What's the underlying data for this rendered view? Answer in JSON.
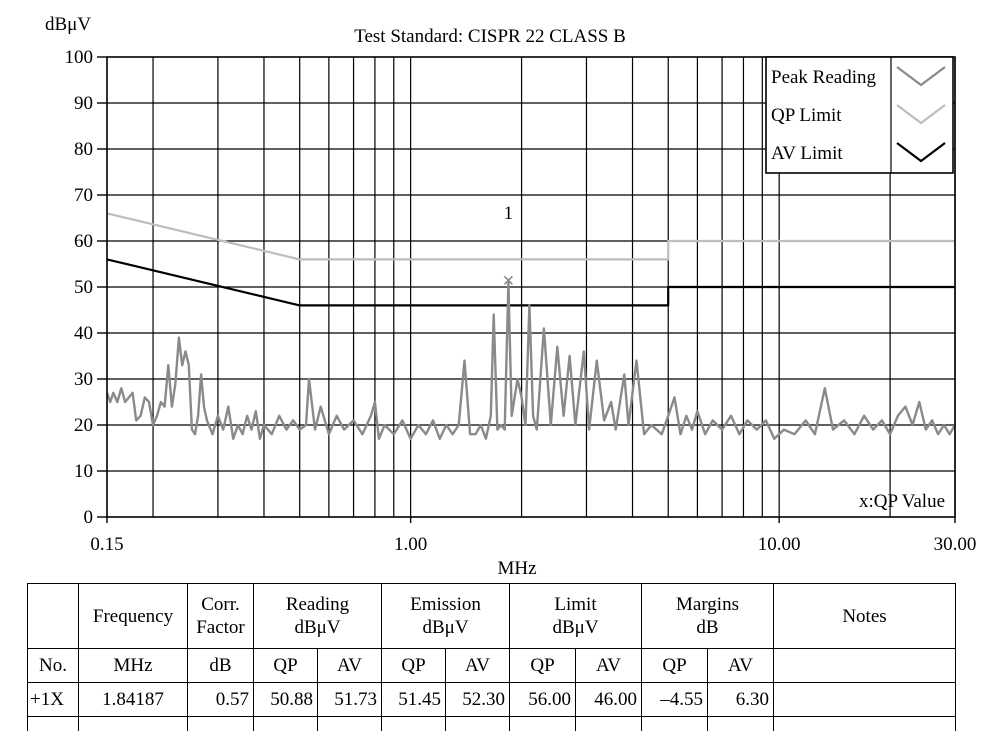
{
  "chart_data": {
    "type": "line",
    "title": "Test Standard: CISPR 22 CLASS B",
    "xlabel": "MHz",
    "ylabel": "dBμV",
    "x_scale": "log",
    "xlim": [
      0.15,
      30
    ],
    "ylim": [
      0,
      100
    ],
    "y_ticks": [
      0,
      10,
      20,
      30,
      40,
      50,
      60,
      70,
      80,
      90,
      100
    ],
    "x_tick_labels": [
      {
        "value": 0.15,
        "label": "0.15"
      },
      {
        "value": 1,
        "label": "1.00"
      },
      {
        "value": 10,
        "label": "10.00"
      },
      {
        "value": 30,
        "label": "30.00"
      }
    ],
    "grid": true,
    "legend_position": "top-right",
    "legend": [
      {
        "name": "Peak Reading",
        "color": "#8a8a8a"
      },
      {
        "name": "QP Limit",
        "color": "#bdbdbd"
      },
      {
        "name": "AV Limit",
        "color": "#000000"
      }
    ],
    "series": [
      {
        "name": "QP Limit",
        "color": "#bdbdbd",
        "points": [
          [
            0.15,
            66
          ],
          [
            0.5,
            56
          ],
          [
            5,
            56
          ],
          [
            5,
            60
          ],
          [
            30,
            60
          ]
        ]
      },
      {
        "name": "AV Limit",
        "color": "#000000",
        "points": [
          [
            0.15,
            56
          ],
          [
            0.5,
            46
          ],
          [
            5,
            46
          ],
          [
            5,
            50
          ],
          [
            30,
            50
          ]
        ]
      },
      {
        "name": "Peak Reading",
        "color": "#8a8a8a",
        "points": [
          [
            0.15,
            27
          ],
          [
            0.153,
            25
          ],
          [
            0.156,
            27
          ],
          [
            0.16,
            25
          ],
          [
            0.164,
            28
          ],
          [
            0.168,
            25
          ],
          [
            0.172,
            26
          ],
          [
            0.176,
            27
          ],
          [
            0.18,
            21
          ],
          [
            0.185,
            22
          ],
          [
            0.19,
            26
          ],
          [
            0.195,
            25
          ],
          [
            0.2,
            20
          ],
          [
            0.205,
            22
          ],
          [
            0.21,
            25
          ],
          [
            0.215,
            24
          ],
          [
            0.22,
            33
          ],
          [
            0.225,
            24
          ],
          [
            0.23,
            29
          ],
          [
            0.235,
            39
          ],
          [
            0.24,
            33
          ],
          [
            0.245,
            36
          ],
          [
            0.25,
            33
          ],
          [
            0.255,
            19
          ],
          [
            0.26,
            18
          ],
          [
            0.265,
            22
          ],
          [
            0.27,
            31
          ],
          [
            0.275,
            24
          ],
          [
            0.28,
            21
          ],
          [
            0.29,
            18
          ],
          [
            0.3,
            22
          ],
          [
            0.31,
            19
          ],
          [
            0.32,
            24
          ],
          [
            0.33,
            17
          ],
          [
            0.34,
            20
          ],
          [
            0.35,
            18
          ],
          [
            0.36,
            22
          ],
          [
            0.37,
            19
          ],
          [
            0.38,
            23
          ],
          [
            0.39,
            17
          ],
          [
            0.4,
            20
          ],
          [
            0.42,
            18
          ],
          [
            0.44,
            22
          ],
          [
            0.46,
            19
          ],
          [
            0.48,
            21
          ],
          [
            0.5,
            19
          ],
          [
            0.52,
            20
          ],
          [
            0.53,
            30
          ],
          [
            0.55,
            19
          ],
          [
            0.57,
            24
          ],
          [
            0.6,
            18
          ],
          [
            0.63,
            22
          ],
          [
            0.66,
            19
          ],
          [
            0.7,
            21
          ],
          [
            0.74,
            18
          ],
          [
            0.78,
            22
          ],
          [
            0.8,
            25
          ],
          [
            0.82,
            17
          ],
          [
            0.85,
            20
          ],
          [
            0.9,
            18
          ],
          [
            0.95,
            21
          ],
          [
            1.0,
            17
          ],
          [
            1.05,
            20
          ],
          [
            1.1,
            18
          ],
          [
            1.15,
            21
          ],
          [
            1.2,
            17
          ],
          [
            1.25,
            20
          ],
          [
            1.3,
            18
          ],
          [
            1.35,
            20
          ],
          [
            1.4,
            34
          ],
          [
            1.45,
            18
          ],
          [
            1.5,
            18
          ],
          [
            1.55,
            20
          ],
          [
            1.6,
            17
          ],
          [
            1.65,
            22
          ],
          [
            1.68,
            44
          ],
          [
            1.72,
            19
          ],
          [
            1.76,
            20
          ],
          [
            1.8,
            19
          ],
          [
            1.842,
            51
          ],
          [
            1.88,
            22
          ],
          [
            1.95,
            30
          ],
          [
            2.0,
            26
          ],
          [
            2.05,
            20
          ],
          [
            2.1,
            46
          ],
          [
            2.15,
            22
          ],
          [
            2.2,
            19
          ],
          [
            2.3,
            41
          ],
          [
            2.4,
            20
          ],
          [
            2.5,
            37
          ],
          [
            2.6,
            22
          ],
          [
            2.7,
            35
          ],
          [
            2.8,
            20
          ],
          [
            2.95,
            36
          ],
          [
            3.05,
            19
          ],
          [
            3.2,
            34
          ],
          [
            3.35,
            21
          ],
          [
            3.5,
            25
          ],
          [
            3.6,
            19
          ],
          [
            3.8,
            31
          ],
          [
            3.9,
            20
          ],
          [
            4.1,
            34
          ],
          [
            4.3,
            18
          ],
          [
            4.5,
            20
          ],
          [
            4.8,
            18
          ],
          [
            5.0,
            22
          ],
          [
            5.2,
            26
          ],
          [
            5.4,
            18
          ],
          [
            5.6,
            22
          ],
          [
            5.8,
            19
          ],
          [
            6.0,
            23
          ],
          [
            6.3,
            18
          ],
          [
            6.6,
            21
          ],
          [
            7.0,
            19
          ],
          [
            7.4,
            22
          ],
          [
            7.8,
            18
          ],
          [
            8.2,
            21
          ],
          [
            8.7,
            19
          ],
          [
            9.2,
            21
          ],
          [
            9.7,
            17
          ],
          [
            10.3,
            19
          ],
          [
            11,
            18
          ],
          [
            11.8,
            21
          ],
          [
            12.5,
            18
          ],
          [
            13.3,
            28
          ],
          [
            14,
            19
          ],
          [
            15,
            21
          ],
          [
            16,
            18
          ],
          [
            17,
            22
          ],
          [
            18,
            19
          ],
          [
            19,
            21
          ],
          [
            20,
            18
          ],
          [
            21,
            22
          ],
          [
            22,
            24
          ],
          [
            23,
            20
          ],
          [
            24,
            25
          ],
          [
            25,
            19
          ],
          [
            26,
            21
          ],
          [
            27,
            18
          ],
          [
            28,
            20
          ],
          [
            29,
            18
          ],
          [
            30,
            20
          ]
        ]
      }
    ],
    "markers": [
      {
        "label": "1",
        "x": 1.84187,
        "y": 51.45,
        "symbol": "x"
      }
    ],
    "annotations": [
      {
        "text": "x:QP Value",
        "position": "bottom-right"
      }
    ]
  },
  "table": {
    "header1": [
      "",
      "Frequency",
      "Corr.\nFactor",
      "Reading\ndBμV",
      "Emission\ndBμV",
      "Limit\ndBμV",
      "Margins\ndB",
      "Notes"
    ],
    "header2": [
      "No.",
      "MHz",
      "dB",
      "QP",
      "AV",
      "QP",
      "AV",
      "QP",
      "AV",
      "QP",
      "AV",
      ""
    ],
    "rows": [
      [
        "+1X",
        "1.84187",
        "0.57",
        "50.88",
        "51.73",
        "51.45",
        "52.30",
        "56.00",
        "46.00",
        "–4.55",
        "6.30",
        ""
      ]
    ]
  }
}
